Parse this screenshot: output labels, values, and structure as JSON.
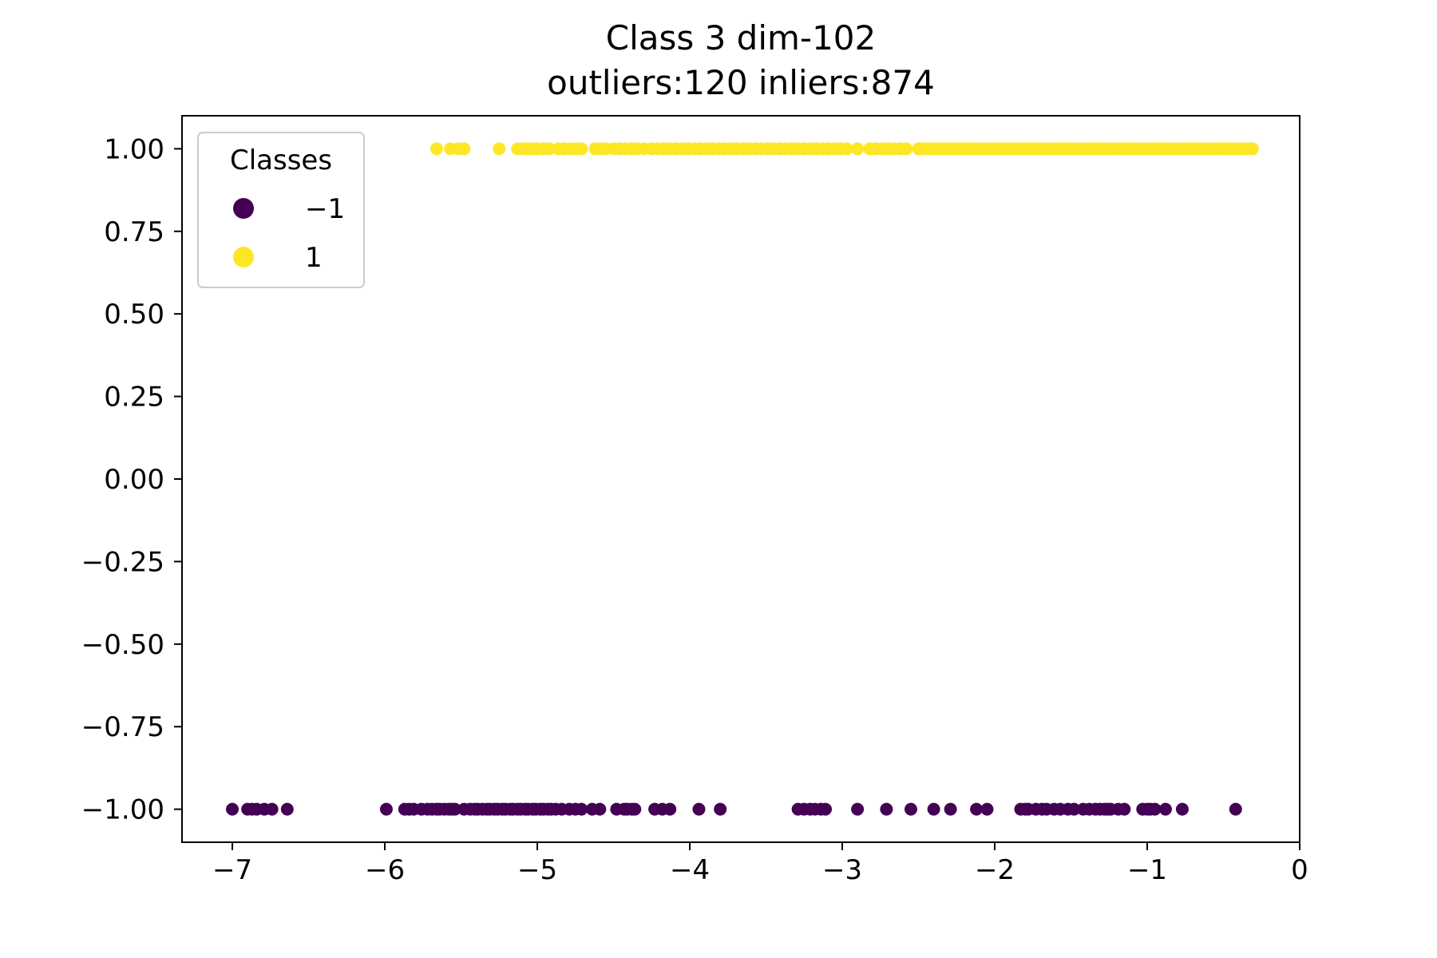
{
  "chart_data": {
    "type": "scatter",
    "title": "Class 3 dim-102",
    "subtitle": "outliers:120  inliers:874",
    "xlabel": "",
    "ylabel": "",
    "xlim": [
      -7.33,
      0.0
    ],
    "ylim": [
      -1.1,
      1.1
    ],
    "x_ticks": [
      -7,
      -6,
      -5,
      -4,
      -3,
      -2,
      -1,
      0
    ],
    "x_tick_labels": [
      "−7",
      "−6",
      "−5",
      "−4",
      "−3",
      "−2",
      "−1",
      "0"
    ],
    "y_ticks": [
      1.0,
      0.75,
      0.5,
      0.25,
      0.0,
      -0.25,
      -0.5,
      -0.75,
      -1.0
    ],
    "y_tick_labels": [
      "1.00",
      "0.75",
      "0.50",
      "0.25",
      "0.00",
      "−0.25",
      "−0.50",
      "−0.75",
      "−1.00"
    ],
    "grid": false,
    "legend": {
      "title": "Classes",
      "placement": "top-left",
      "entries": [
        {
          "label": "−1",
          "color": "#440154"
        },
        {
          "label": "1",
          "color": "#fde725"
        }
      ]
    },
    "series": [
      {
        "name": "−1",
        "color": "#440154",
        "y": -1.0,
        "x": [
          -7.0,
          -6.9,
          -6.87,
          -6.84,
          -6.79,
          -6.74,
          -6.64,
          -5.99,
          -5.87,
          -5.84,
          -5.81,
          -5.76,
          -5.72,
          -5.69,
          -5.66,
          -5.64,
          -5.61,
          -5.58,
          -5.56,
          -5.54,
          -5.48,
          -5.44,
          -5.41,
          -5.39,
          -5.36,
          -5.33,
          -5.31,
          -5.28,
          -5.26,
          -5.23,
          -5.21,
          -5.18,
          -5.16,
          -5.13,
          -5.11,
          -5.08,
          -5.06,
          -5.03,
          -5.01,
          -4.98,
          -4.96,
          -4.93,
          -4.91,
          -4.88,
          -4.84,
          -4.79,
          -4.75,
          -4.71,
          -4.64,
          -4.59,
          -4.48,
          -4.43,
          -4.41,
          -4.38,
          -4.36,
          -4.23,
          -4.18,
          -4.13,
          -3.94,
          -3.8,
          -3.29,
          -3.25,
          -3.21,
          -3.18,
          -3.14,
          -3.11,
          -2.9,
          -2.71,
          -2.55,
          -2.4,
          -2.29,
          -2.12,
          -2.05,
          -1.83,
          -1.8,
          -1.78,
          -1.73,
          -1.69,
          -1.66,
          -1.61,
          -1.57,
          -1.52,
          -1.48,
          -1.42,
          -1.38,
          -1.34,
          -1.31,
          -1.28,
          -1.26,
          -1.24,
          -1.19,
          -1.15,
          -1.03,
          -1.0,
          -0.98,
          -0.95,
          -0.88,
          -0.77,
          -0.42
        ]
      },
      {
        "name": "1",
        "color": "#fde725",
        "y": 1.0,
        "x": [
          -5.66,
          -5.57,
          -5.52,
          -5.48,
          -5.25,
          -5.13,
          -5.09,
          -5.06,
          -5.03,
          -5.0,
          -4.96,
          -4.92,
          -4.86,
          -4.82,
          -4.78,
          -4.74,
          -4.71,
          -4.62,
          -4.59,
          -4.55,
          -4.5,
          -4.46,
          -4.42,
          -4.38,
          -4.34,
          -4.3,
          -4.25,
          -4.21,
          -4.17,
          -4.13,
          -4.09,
          -4.05,
          -4.01,
          -3.97,
          -3.93,
          -3.89,
          -3.85,
          -3.81,
          -3.77,
          -3.73,
          -3.69,
          -3.65,
          -3.61,
          -3.57,
          -3.53,
          -3.49,
          -3.45,
          -3.41,
          -3.37,
          -3.33,
          -3.29,
          -3.25,
          -3.21,
          -3.17,
          -3.13,
          -3.09,
          -3.05,
          -3.01,
          -2.97,
          -2.9,
          -2.82,
          -2.78,
          -2.74,
          -2.7,
          -2.66,
          -2.62,
          -2.58,
          -2.5,
          -2.47,
          -2.44,
          -2.41,
          -2.38,
          -2.35,
          -2.32,
          -2.29,
          -2.26,
          -2.23,
          -2.2,
          -2.17,
          -2.14,
          -2.11,
          -2.08,
          -2.05,
          -2.02,
          -1.99,
          -1.96,
          -1.93,
          -1.9,
          -1.87,
          -1.84,
          -1.81,
          -1.78,
          -1.75,
          -1.72,
          -1.69,
          -1.66,
          -1.63,
          -1.6,
          -1.57,
          -1.54,
          -1.51,
          -1.48,
          -1.45,
          -1.42,
          -1.39,
          -1.36,
          -1.33,
          -1.3,
          -1.27,
          -1.24,
          -1.21,
          -1.18,
          -1.15,
          -1.12,
          -1.09,
          -1.06,
          -1.03,
          -1.0,
          -0.97,
          -0.94,
          -0.91,
          -0.88,
          -0.85,
          -0.82,
          -0.79,
          -0.76,
          -0.73,
          -0.7,
          -0.67,
          -0.64,
          -0.61,
          -0.58,
          -0.55,
          -0.52,
          -0.49,
          -0.46,
          -0.43,
          -0.4,
          -0.37,
          -0.34,
          -0.31
        ]
      }
    ]
  }
}
